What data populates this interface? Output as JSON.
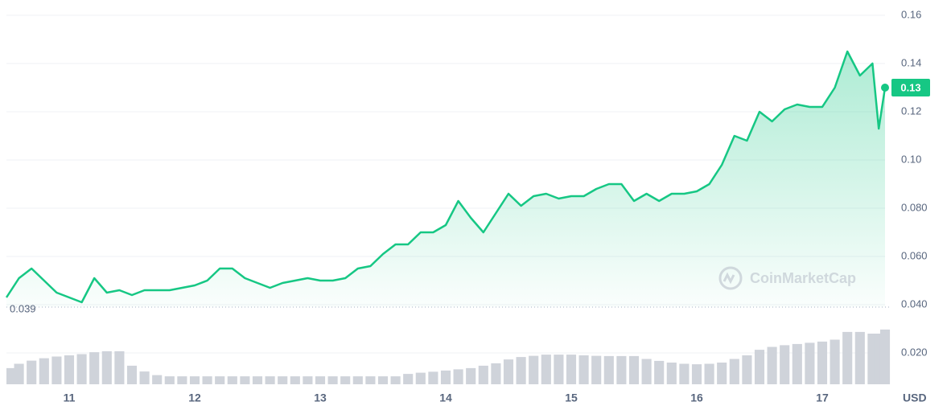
{
  "chart_data": {
    "type": "line",
    "x": [
      10.5,
      10.6,
      10.7,
      10.8,
      10.9,
      11.0,
      11.1,
      11.2,
      11.3,
      11.4,
      11.5,
      11.6,
      11.7,
      11.8,
      11.9,
      12.0,
      12.1,
      12.2,
      12.3,
      12.4,
      12.5,
      12.6,
      12.7,
      12.8,
      12.9,
      13.0,
      13.1,
      13.2,
      13.3,
      13.4,
      13.5,
      13.6,
      13.7,
      13.8,
      13.9,
      14.0,
      14.1,
      14.2,
      14.3,
      14.4,
      14.5,
      14.6,
      14.7,
      14.8,
      14.9,
      15.0,
      15.1,
      15.2,
      15.3,
      15.4,
      15.5,
      15.6,
      15.7,
      15.8,
      15.9,
      16.0,
      16.1,
      16.2,
      16.3,
      16.4,
      16.5,
      16.6,
      16.7,
      16.8,
      16.9,
      17.0,
      17.1,
      17.2,
      17.3,
      17.4,
      17.45,
      17.5
    ],
    "series": [
      {
        "color": "#16c784",
        "values": [
          0.043,
          0.051,
          0.055,
          0.05,
          0.045,
          0.043,
          0.041,
          0.051,
          0.045,
          0.046,
          0.044,
          0.046,
          0.046,
          0.046,
          0.047,
          0.048,
          0.05,
          0.055,
          0.055,
          0.051,
          0.049,
          0.047,
          0.049,
          0.05,
          0.051,
          0.05,
          0.05,
          0.051,
          0.055,
          0.056,
          0.061,
          0.065,
          0.065,
          0.07,
          0.07,
          0.073,
          0.083,
          0.076,
          0.07,
          0.078,
          0.086,
          0.081,
          0.085,
          0.086,
          0.084,
          0.085,
          0.085,
          0.088,
          0.09,
          0.09,
          0.083,
          0.086,
          0.083,
          0.086,
          0.086,
          0.087,
          0.09,
          0.098,
          0.11,
          0.108,
          0.12,
          0.116,
          0.121,
          0.123,
          0.122,
          0.122,
          0.13,
          0.145,
          0.135,
          0.14,
          0.113,
          0.13
        ]
      },
      {
        "type": "bar",
        "color": "#cfd3da",
        "values": [
          0.0137,
          0.0155,
          0.0168,
          0.0178,
          0.0185,
          0.019,
          0.0195,
          0.0203,
          0.0207,
          0.0207,
          0.0147,
          0.0123,
          0.0108,
          0.0103,
          0.0103,
          0.0103,
          0.0103,
          0.0103,
          0.0103,
          0.0103,
          0.0103,
          0.0103,
          0.0103,
          0.0103,
          0.0103,
          0.0103,
          0.0103,
          0.0103,
          0.0103,
          0.0103,
          0.0103,
          0.0103,
          0.0113,
          0.0118,
          0.0122,
          0.0127,
          0.0132,
          0.0137,
          0.0147,
          0.0157,
          0.0173,
          0.0183,
          0.0188,
          0.0193,
          0.0193,
          0.0193,
          0.019,
          0.0188,
          0.0187,
          0.0187,
          0.0187,
          0.0175,
          0.0167,
          0.016,
          0.0155,
          0.0153,
          0.0155,
          0.016,
          0.0175,
          0.019,
          0.0213,
          0.0225,
          0.0232,
          0.0237,
          0.0242,
          0.0247,
          0.0255,
          0.0287,
          0.0287,
          0.028,
          0.028,
          0.0297
        ]
      }
    ],
    "xlim": [
      10.5,
      17.5
    ],
    "xticks": [
      11,
      12,
      13,
      14,
      15,
      16,
      17
    ],
    "ylim": [
      0.007,
      0.16
    ],
    "yticks": [
      {
        "value": 0.02,
        "label": "0.020"
      },
      {
        "value": 0.04,
        "label": "0.040"
      },
      {
        "value": 0.06,
        "label": "0.060"
      },
      {
        "value": 0.08,
        "label": "0.080"
      },
      {
        "value": 0.1,
        "label": "0.10"
      },
      0.12,
      0.14,
      0.16
    ],
    "grid": true,
    "y_axis_label": "USD",
    "baseline": 0.039,
    "last_price": 0.13,
    "watermark": "CoinMarketCap"
  }
}
